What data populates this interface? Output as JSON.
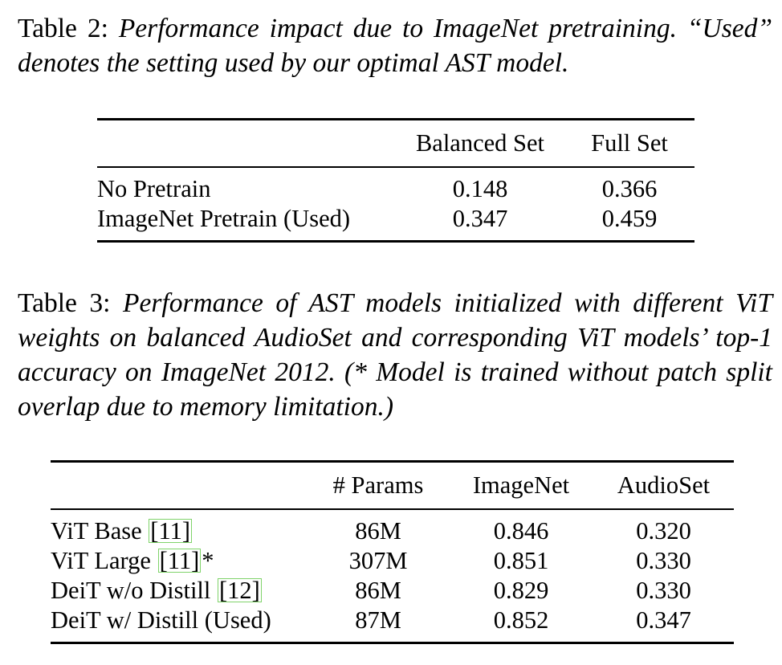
{
  "table2": {
    "caption_label": "Table 2:",
    "caption_text": "Performance impact due to ImageNet pretraining. “Used” denotes the setting used by our optimal AST model.",
    "columns": [
      "",
      "Balanced Set",
      "Full Set"
    ],
    "rows": [
      {
        "label": "No Pretrain",
        "values": [
          "0.148",
          "0.366"
        ]
      },
      {
        "label": "ImageNet Pretrain (Used)",
        "values": [
          "0.347",
          "0.459"
        ]
      }
    ]
  },
  "table3": {
    "caption_label": "Table 3:",
    "caption_text": "Performance of AST models initialized with different ViT weights on balanced AudioSet and corresponding ViT models’ top-1 accuracy on ImageNet 2012. (* Model is trained without patch split overlap due to memory limitation.)",
    "columns": [
      "",
      "# Params",
      "ImageNet",
      "AudioSet"
    ],
    "rows": [
      {
        "label": "ViT Base ",
        "cite": "[11]",
        "suffix": "",
        "values": [
          "86M",
          "0.846",
          "0.320"
        ]
      },
      {
        "label": "ViT Large ",
        "cite": "[11]",
        "suffix": "*",
        "values": [
          "307M",
          "0.851",
          "0.330"
        ]
      },
      {
        "label": "DeiT w/o Distill ",
        "cite": "[12]",
        "suffix": "",
        "values": [
          "86M",
          "0.829",
          "0.330"
        ]
      },
      {
        "label": "DeiT w/ Distill (Used)",
        "cite": "",
        "suffix": "",
        "values": [
          "87M",
          "0.852",
          "0.347"
        ]
      }
    ]
  }
}
